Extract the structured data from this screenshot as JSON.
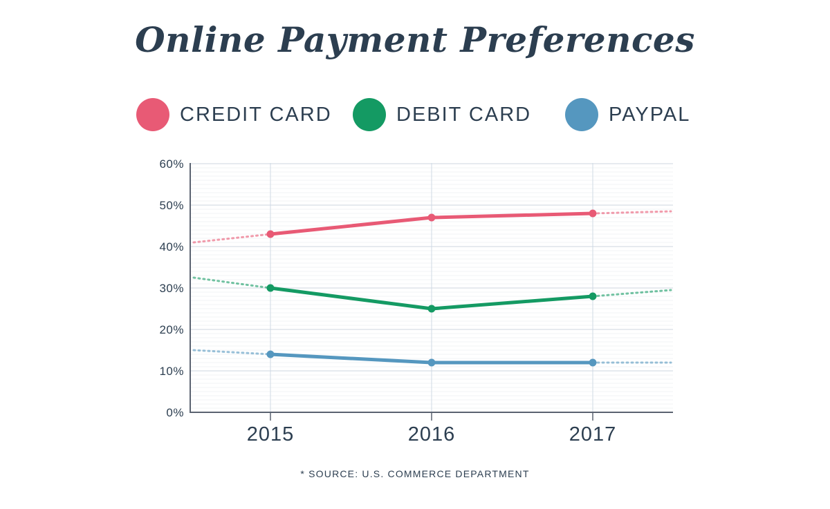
{
  "title": "Online Payment Preferences",
  "legend": [
    {
      "label": "CREDIT CARD",
      "color": "#e85a75"
    },
    {
      "label": "DEBIT CARD",
      "color": "#149a63"
    },
    {
      "label": "PAYPAL",
      "color": "#5597bf"
    }
  ],
  "source": "* SOURCE: U.S. COMMERCE DEPARTMENT",
  "colors": {
    "text": "#2c3e50",
    "credit": "#e85a75",
    "debit": "#149a63",
    "paypal": "#5597bf",
    "grid_major": "#dde3ea",
    "grid_minor": "#f1f3f6",
    "axis": "#5a6270"
  },
  "chart_data": {
    "type": "line",
    "title": "Online Payment Preferences",
    "xlabel": "",
    "ylabel": "",
    "categories": [
      "2015",
      "2016",
      "2017"
    ],
    "yticks": [
      "0%",
      "10%",
      "20%",
      "30%",
      "40%",
      "50%",
      "60%"
    ],
    "ylim": [
      0,
      60
    ],
    "grid": true,
    "legend_position": "top",
    "series": [
      {
        "name": "CREDIT CARD",
        "values": [
          43,
          47,
          48
        ],
        "trend_start": 41,
        "trend_end": 48.5
      },
      {
        "name": "DEBIT CARD",
        "values": [
          30,
          25,
          28
        ],
        "trend_start": 32.5,
        "trend_end": 29.5
      },
      {
        "name": "PAYPAL",
        "values": [
          14,
          12,
          12
        ],
        "trend_start": 15,
        "trend_end": 12
      }
    ],
    "annotations": [
      "* SOURCE: U.S. COMMERCE DEPARTMENT"
    ]
  }
}
